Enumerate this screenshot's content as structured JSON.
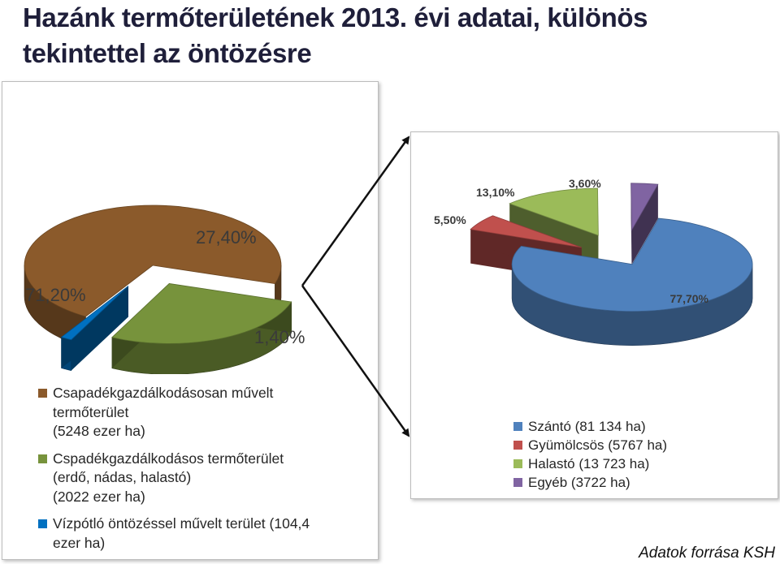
{
  "title": {
    "line1": "Hazánk termőterületének  2013. évi adatai, különös",
    "line2": "tekintettel az öntözésre"
  },
  "chart_data": [
    {
      "type": "pie",
      "slices": [
        {
          "label": "71,20%",
          "value": 71.2,
          "color": "#8b5a2b"
        },
        {
          "label": "27,40%",
          "value": 27.4,
          "color": "#77933c"
        },
        {
          "label": "1,40%",
          "value": 1.4,
          "color": "#0070c0"
        }
      ],
      "legend": [
        {
          "lines": [
            "Csapadékgazdálkodásosan művelt",
            "termőterület",
            "(5248 ezer ha)"
          ],
          "color": "#8b5a2b"
        },
        {
          "lines": [
            "Cspadékgazdálkodásos termőterület",
            " (erdő, nádas, halastó)",
            "(2022 ezer ha)"
          ],
          "color": "#77933c"
        },
        {
          "lines": [
            "Vízpótló öntözéssel művelt terület (104,4",
            "ezer ha)"
          ],
          "color": "#0070c0"
        }
      ]
    },
    {
      "type": "pie",
      "slices": [
        {
          "label": "77,70%",
          "value": 77.7,
          "color": "#4f81bd"
        },
        {
          "label": "5,50%",
          "value": 5.5,
          "color": "#c0504d"
        },
        {
          "label": "13,10%",
          "value": 13.1,
          "color": "#9bbb59"
        },
        {
          "label": "3,60%",
          "value": 3.6,
          "color": "#8064a2"
        }
      ],
      "legend": [
        {
          "label": "Szántó (81 134 ha)",
          "color": "#4f81bd"
        },
        {
          "label": "Gyümölcsös (5767 ha)",
          "color": "#c0504d"
        },
        {
          "label": "Halastó (13 723 ha)",
          "color": "#9bbb59"
        },
        {
          "label": "Egyéb (3722 ha)",
          "color": "#8064a2"
        }
      ]
    }
  ],
  "source": "Adatok forrása KSH"
}
